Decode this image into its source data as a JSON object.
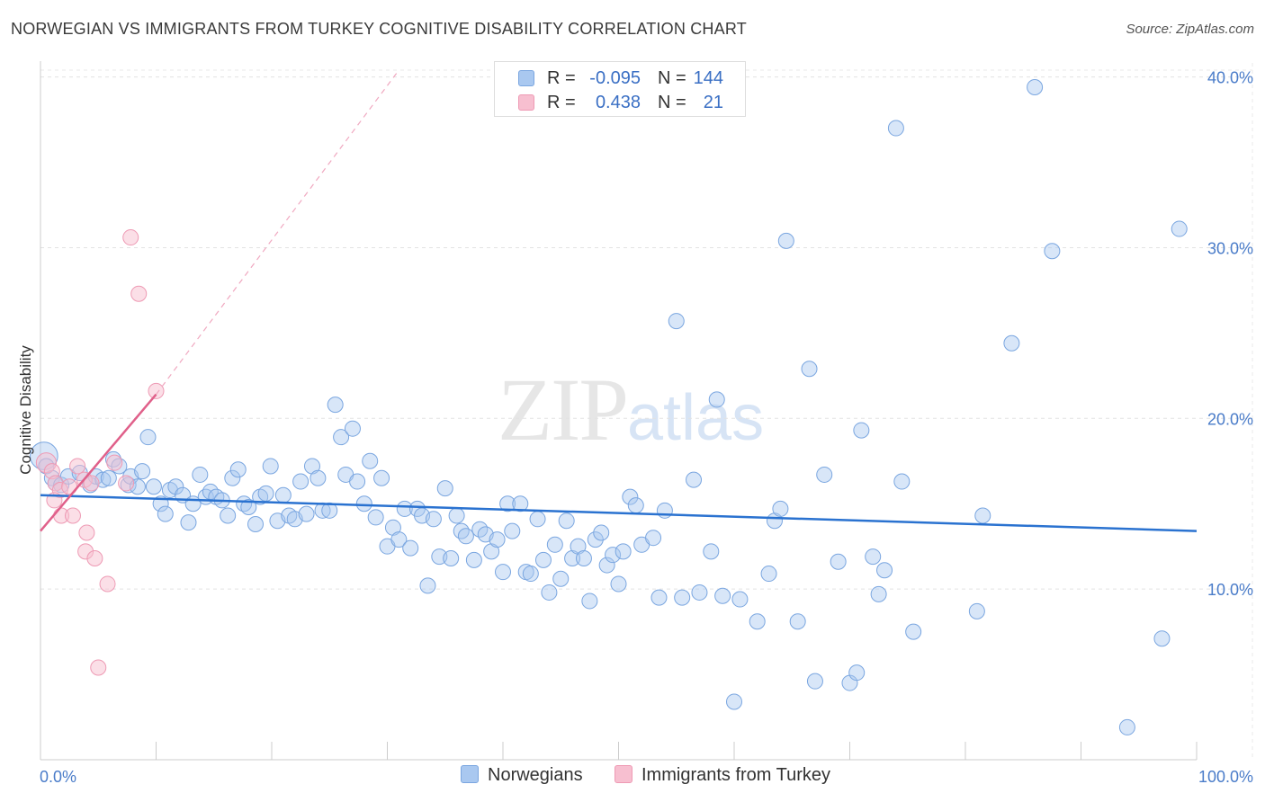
{
  "title": "NORWEGIAN VS IMMIGRANTS FROM TURKEY COGNITIVE DISABILITY CORRELATION CHART",
  "source": "Source: ZipAtlas.com",
  "watermark": {
    "zip": "ZIP",
    "atlas": "atlas"
  },
  "legend": {
    "series": [
      {
        "r_label": "R =",
        "r_value": "-0.095",
        "n_label": "N =",
        "n_value": "144"
      },
      {
        "r_label": "R =",
        "r_value": "0.438",
        "n_label": "N =",
        "n_value": "21"
      }
    ]
  },
  "chart_data": {
    "type": "scatter",
    "title": "NORWEGIAN VS IMMIGRANTS FROM TURKEY COGNITIVE DISABILITY CORRELATION CHART",
    "xlabel": "",
    "ylabel": "Cognitive Disability",
    "xlim": [
      0,
      100
    ],
    "ylim": [
      0,
      40.4
    ],
    "x_tick_labels": [
      "0.0%",
      "100.0%"
    ],
    "y_ticks": [
      10,
      20,
      30,
      40
    ],
    "y_tick_labels": [
      "10.0%",
      "20.0%",
      "30.0%",
      "40.0%"
    ],
    "grid": true,
    "legend_position": "top-center",
    "colors": {
      "norwegians_fill": "#a9c8f0",
      "norwegians_stroke": "#7aa6e0",
      "norwegians_line": "#2a72d0",
      "turkey_fill": "#f7bfd0",
      "turkey_stroke": "#ee9ab4",
      "turkey_line": "#e0608a"
    },
    "series": [
      {
        "name": "Norwegians",
        "r": -0.095,
        "n": 144,
        "trend": {
          "x0": 0,
          "y0": 15.5,
          "x1": 100,
          "y1": 13.4
        },
        "points": [
          [
            0.3,
            17.8,
            1.8
          ],
          [
            0.5,
            17.2,
            1
          ],
          [
            1,
            16.5,
            1
          ],
          [
            1.3,
            16.2,
            1
          ],
          [
            1.8,
            16.1,
            1
          ],
          [
            2.4,
            16.6,
            1
          ],
          [
            3.4,
            16.8,
            1
          ],
          [
            4.3,
            16.1,
            1
          ],
          [
            4.8,
            16.6,
            1
          ],
          [
            5.4,
            16.4,
            1
          ],
          [
            5.9,
            16.5,
            1
          ],
          [
            6.3,
            17.6,
            1
          ],
          [
            6.8,
            17.2,
            1
          ],
          [
            7.6,
            16.1,
            1
          ],
          [
            7.8,
            16.6,
            1
          ],
          [
            8.4,
            16.0,
            1
          ],
          [
            8.8,
            16.9,
            1
          ],
          [
            9.3,
            18.9,
            1
          ],
          [
            9.8,
            16.0,
            1
          ],
          [
            10.4,
            15.0,
            1
          ],
          [
            10.8,
            14.4,
            1
          ],
          [
            11.2,
            15.8,
            1
          ],
          [
            11.7,
            16.0,
            1
          ],
          [
            12.3,
            15.5,
            1
          ],
          [
            12.8,
            13.9,
            1
          ],
          [
            13.2,
            15.0,
            1
          ],
          [
            13.8,
            16.7,
            1
          ],
          [
            14.3,
            15.4,
            1
          ],
          [
            14.7,
            15.7,
            1
          ],
          [
            15.2,
            15.4,
            1
          ],
          [
            15.7,
            15.2,
            1
          ],
          [
            16.2,
            14.3,
            1
          ],
          [
            16.6,
            16.5,
            1
          ],
          [
            17.1,
            17.0,
            1
          ],
          [
            17.6,
            15.0,
            1
          ],
          [
            18.0,
            14.8,
            1
          ],
          [
            18.6,
            13.8,
            1
          ],
          [
            19.0,
            15.4,
            1
          ],
          [
            19.5,
            15.6,
            1
          ],
          [
            19.9,
            17.2,
            1
          ],
          [
            20.5,
            14.0,
            1
          ],
          [
            21.0,
            15.5,
            1
          ],
          [
            21.5,
            14.3,
            1
          ],
          [
            22.0,
            14.1,
            1
          ],
          [
            22.5,
            16.3,
            1
          ],
          [
            23.0,
            14.4,
            1
          ],
          [
            23.5,
            17.2,
            1
          ],
          [
            24.0,
            16.5,
            1
          ],
          [
            24.4,
            14.6,
            1
          ],
          [
            25.0,
            14.6,
            1
          ],
          [
            25.5,
            20.8,
            1
          ],
          [
            26.0,
            18.9,
            1
          ],
          [
            26.4,
            16.7,
            1
          ],
          [
            27.0,
            19.4,
            1
          ],
          [
            27.4,
            16.3,
            1
          ],
          [
            28.0,
            15.0,
            1
          ],
          [
            28.5,
            17.5,
            1
          ],
          [
            29.0,
            14.2,
            1
          ],
          [
            29.5,
            16.5,
            1
          ],
          [
            30.0,
            12.5,
            1
          ],
          [
            30.5,
            13.6,
            1
          ],
          [
            31.0,
            12.9,
            1
          ],
          [
            31.5,
            14.7,
            1
          ],
          [
            32.0,
            12.4,
            1
          ],
          [
            32.6,
            14.7,
            1
          ],
          [
            33.0,
            14.3,
            1
          ],
          [
            33.5,
            10.2,
            1
          ],
          [
            34.0,
            14.1,
            1
          ],
          [
            34.5,
            11.9,
            1
          ],
          [
            35.0,
            15.9,
            1
          ],
          [
            35.5,
            11.8,
            1
          ],
          [
            36.0,
            14.3,
            1
          ],
          [
            36.4,
            13.4,
            1
          ],
          [
            36.8,
            13.1,
            1
          ],
          [
            37.5,
            11.7,
            1
          ],
          [
            38.0,
            13.5,
            1
          ],
          [
            38.5,
            13.2,
            1
          ],
          [
            39.0,
            12.2,
            1
          ],
          [
            39.5,
            12.9,
            1
          ],
          [
            40.0,
            11.0,
            1
          ],
          [
            40.4,
            15.0,
            1
          ],
          [
            40.8,
            13.4,
            1
          ],
          [
            41.5,
            15.0,
            1
          ],
          [
            42.0,
            11.0,
            1
          ],
          [
            42.4,
            10.9,
            1
          ],
          [
            43.0,
            14.1,
            1
          ],
          [
            43.5,
            11.7,
            1
          ],
          [
            44.0,
            9.8,
            1
          ],
          [
            44.5,
            12.6,
            1
          ],
          [
            45.0,
            10.6,
            1
          ],
          [
            45.5,
            14.0,
            1
          ],
          [
            46.0,
            11.8,
            1
          ],
          [
            46.5,
            12.5,
            1
          ],
          [
            47.0,
            11.8,
            1
          ],
          [
            47.5,
            9.3,
            1
          ],
          [
            48.0,
            12.9,
            1
          ],
          [
            48.5,
            13.3,
            1
          ],
          [
            49.0,
            11.4,
            1
          ],
          [
            49.5,
            12.0,
            1
          ],
          [
            50.0,
            10.3,
            1
          ],
          [
            50.4,
            12.2,
            1
          ],
          [
            51.0,
            15.4,
            1
          ],
          [
            51.5,
            14.9,
            1
          ],
          [
            52.0,
            12.6,
            1
          ],
          [
            53.0,
            13.0,
            1
          ],
          [
            53.5,
            9.5,
            1
          ],
          [
            54.0,
            14.6,
            1
          ],
          [
            55.0,
            25.7,
            1
          ],
          [
            55.5,
            9.5,
            1
          ],
          [
            56.5,
            16.4,
            1
          ],
          [
            57.0,
            9.8,
            1
          ],
          [
            58.0,
            12.2,
            1
          ],
          [
            58.5,
            21.1,
            1
          ],
          [
            59.0,
            9.6,
            1
          ],
          [
            60.0,
            3.4,
            1
          ],
          [
            60.5,
            9.4,
            1
          ],
          [
            62.0,
            8.1,
            1
          ],
          [
            63.0,
            10.9,
            1
          ],
          [
            63.5,
            14.0,
            1
          ],
          [
            64.0,
            14.7,
            1
          ],
          [
            64.5,
            30.4,
            1
          ],
          [
            65.5,
            8.1,
            1
          ],
          [
            66.5,
            22.9,
            1
          ],
          [
            67.0,
            4.6,
            1
          ],
          [
            67.8,
            16.7,
            1
          ],
          [
            69.0,
            11.6,
            1
          ],
          [
            70.0,
            4.5,
            1
          ],
          [
            70.6,
            5.1,
            1
          ],
          [
            71.0,
            19.3,
            1
          ],
          [
            72.0,
            11.9,
            1
          ],
          [
            72.5,
            9.7,
            1
          ],
          [
            73.0,
            11.1,
            1
          ],
          [
            74.0,
            37.0,
            1
          ],
          [
            74.5,
            16.3,
            1
          ],
          [
            75.5,
            7.5,
            1
          ],
          [
            81.0,
            8.7,
            1
          ],
          [
            81.5,
            14.3,
            1
          ],
          [
            84.0,
            24.4,
            1
          ],
          [
            86.0,
            39.4,
            1
          ],
          [
            87.5,
            29.8,
            1
          ],
          [
            94.0,
            1.9,
            1
          ],
          [
            97.0,
            7.1,
            1
          ],
          [
            98.5,
            31.1,
            1
          ]
        ]
      },
      {
        "name": "Immigrants from Turkey",
        "r": 0.438,
        "n": 21,
        "trend": {
          "x0": 0,
          "y0": 13.4,
          "x1": 10,
          "y1": 21.4
        },
        "trend_extension": {
          "x0": 10,
          "y0": 21.4,
          "x1": 31,
          "y1": 40.4
        },
        "points": [
          [
            0.5,
            17.4,
            1.3
          ],
          [
            1.0,
            16.9,
            1
          ],
          [
            1.3,
            16.2,
            1
          ],
          [
            1.7,
            15.8,
            1
          ],
          [
            1.2,
            15.2,
            1
          ],
          [
            1.8,
            14.3,
            1
          ],
          [
            2.5,
            16.0,
            1
          ],
          [
            2.8,
            14.3,
            1
          ],
          [
            3.2,
            17.2,
            1
          ],
          [
            3.8,
            16.4,
            1
          ],
          [
            4.0,
            13.3,
            1
          ],
          [
            3.9,
            12.2,
            1
          ],
          [
            4.4,
            16.2,
            1
          ],
          [
            4.7,
            11.8,
            1
          ],
          [
            5.0,
            5.4,
            1
          ],
          [
            5.8,
            10.3,
            1
          ],
          [
            6.4,
            17.4,
            1
          ],
          [
            7.4,
            16.2,
            1
          ],
          [
            7.8,
            30.6,
            1
          ],
          [
            8.5,
            27.3,
            1
          ],
          [
            10.0,
            21.6,
            1
          ]
        ]
      }
    ]
  },
  "bottom_legend": {
    "norwegians": "Norwegians",
    "turkey": "Immigrants from Turkey"
  }
}
